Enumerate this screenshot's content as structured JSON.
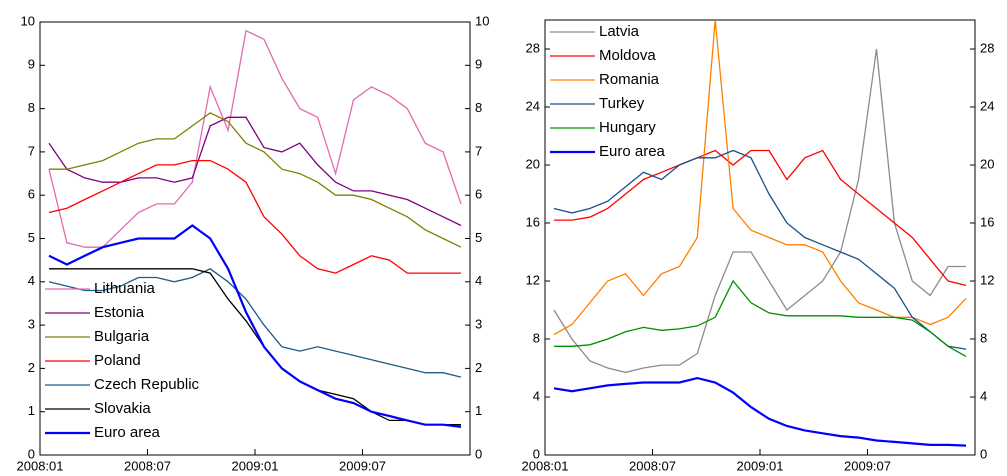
{
  "chart_data": [
    {
      "type": "line",
      "x": [
        "2008:01",
        "2008:02",
        "2008:03",
        "2008:04",
        "2008:05",
        "2008:06",
        "2008:07",
        "2008:08",
        "2008:09",
        "2008:10",
        "2008:11",
        "2008:12",
        "2009:01",
        "2009:02",
        "2009:03",
        "2009:04",
        "2009:05",
        "2009:06",
        "2009:07",
        "2009:08",
        "2009:09",
        "2009:10",
        "2009:11",
        "2009:12"
      ],
      "xticks": [
        "2008:01",
        "2008:07",
        "2009:01",
        "2009:07"
      ],
      "ylim": [
        0,
        10
      ],
      "yticks": [
        0,
        1,
        2,
        3,
        4,
        5,
        6,
        7,
        8,
        9,
        10
      ],
      "legend": "lower left",
      "series": [
        {
          "name": "Lithuania",
          "color": "#e36aae",
          "values": [
            6.6,
            4.9,
            4.8,
            4.8,
            5.2,
            5.6,
            5.8,
            5.8,
            6.3,
            8.5,
            7.5,
            9.8,
            9.6,
            8.7,
            8.0,
            7.8,
            6.5,
            8.2,
            8.5,
            8.3,
            8.0,
            7.2,
            7.0,
            5.8
          ]
        },
        {
          "name": "Estonia",
          "color": "#800080",
          "values": [
            7.2,
            6.6,
            6.4,
            6.3,
            6.3,
            6.4,
            6.4,
            6.3,
            6.4,
            7.6,
            7.8,
            7.8,
            7.1,
            7.0,
            7.2,
            6.7,
            6.3,
            6.1,
            6.1,
            6.0,
            5.9,
            5.7,
            5.5,
            5.3
          ]
        },
        {
          "name": "Bulgaria",
          "color": "#808000",
          "values": [
            6.6,
            6.6,
            6.7,
            6.8,
            7.0,
            7.2,
            7.3,
            7.3,
            7.6,
            7.9,
            7.7,
            7.2,
            7.0,
            6.6,
            6.5,
            6.3,
            6.0,
            6.0,
            5.9,
            5.7,
            5.5,
            5.2,
            5.0,
            4.8
          ]
        },
        {
          "name": "Poland",
          "color": "#ff0000",
          "values": [
            5.6,
            5.7,
            5.9,
            6.1,
            6.3,
            6.5,
            6.7,
            6.7,
            6.8,
            6.8,
            6.6,
            6.3,
            5.5,
            5.1,
            4.6,
            4.3,
            4.2,
            4.4,
            4.6,
            4.5,
            4.2,
            4.2,
            4.2,
            4.2
          ]
        },
        {
          "name": "Czech Republic",
          "color": "#1a5d8a",
          "values": [
            4.0,
            3.9,
            3.8,
            3.8,
            3.9,
            4.1,
            4.1,
            4.0,
            4.1,
            4.3,
            4.0,
            3.6,
            3.0,
            2.5,
            2.4,
            2.5,
            2.4,
            2.3,
            2.2,
            2.1,
            2.0,
            1.9,
            1.9,
            1.8
          ]
        },
        {
          "name": "Slovakia",
          "color": "#000000",
          "values": [
            4.3,
            4.3,
            4.3,
            4.3,
            4.3,
            4.3,
            4.3,
            4.3,
            4.3,
            4.2,
            3.6,
            3.1,
            2.5,
            2.0,
            1.7,
            1.5,
            1.4,
            1.3,
            1.0,
            0.8,
            0.8,
            0.7,
            0.7,
            0.7
          ]
        },
        {
          "name": "Euro area",
          "color": "#0000ff",
          "values": [
            4.6,
            4.4,
            4.6,
            4.8,
            4.9,
            5.0,
            5.0,
            5.0,
            5.3,
            5.0,
            4.3,
            3.3,
            2.5,
            2.0,
            1.7,
            1.5,
            1.3,
            1.2,
            1.0,
            0.9,
            0.8,
            0.7,
            0.7,
            0.65
          ]
        }
      ]
    },
    {
      "type": "line",
      "x": [
        "2008:01",
        "2008:02",
        "2008:03",
        "2008:04",
        "2008:05",
        "2008:06",
        "2008:07",
        "2008:08",
        "2008:09",
        "2008:10",
        "2008:11",
        "2008:12",
        "2009:01",
        "2009:02",
        "2009:03",
        "2009:04",
        "2009:05",
        "2009:06",
        "2009:07",
        "2009:08",
        "2009:09",
        "2009:10",
        "2009:11",
        "2009:12"
      ],
      "xticks": [
        "2008:01",
        "2008:07",
        "2009:01",
        "2009:07"
      ],
      "ylim": [
        0,
        30
      ],
      "yticks": [
        0,
        4,
        8,
        12,
        16,
        20,
        24,
        28
      ],
      "legend": "upper left",
      "series": [
        {
          "name": "Latvia",
          "color": "#8c8c8c",
          "values": [
            10,
            8,
            6.5,
            6,
            5.7,
            6,
            6.2,
            6.2,
            7,
            11,
            14,
            14,
            12,
            10,
            11,
            12,
            14,
            19,
            28,
            16,
            12,
            11,
            13,
            13
          ]
        },
        {
          "name": "Moldova",
          "color": "#ff0000",
          "values": [
            16.2,
            16.2,
            16.4,
            17,
            18,
            19,
            19.5,
            20,
            20.5,
            21,
            20,
            21,
            21,
            19,
            20.5,
            21,
            19,
            18,
            17,
            16,
            15,
            13.5,
            12,
            11.7
          ]
        },
        {
          "name": "Romania",
          "color": "#ff8000",
          "values": [
            8.3,
            9,
            10.5,
            12,
            12.5,
            11,
            12.5,
            13,
            15,
            30,
            17,
            15.5,
            15,
            14.5,
            14.5,
            14,
            12,
            10.5,
            10,
            9.5,
            9.5,
            9,
            9.5,
            10.8
          ]
        },
        {
          "name": "Turkey",
          "color": "#1a4f8a",
          "values": [
            17,
            16.7,
            17,
            17.5,
            18.5,
            19.5,
            19,
            20,
            20.5,
            20.5,
            21,
            20.5,
            18,
            16,
            15,
            14.5,
            14,
            13.5,
            12.5,
            11.5,
            9.5,
            8.5,
            7.5,
            7.3
          ]
        },
        {
          "name": "Hungary",
          "color": "#009000",
          "values": [
            7.5,
            7.5,
            7.6,
            8.0,
            8.5,
            8.8,
            8.6,
            8.7,
            8.9,
            9.5,
            12,
            10.5,
            9.8,
            9.6,
            9.6,
            9.6,
            9.6,
            9.5,
            9.5,
            9.5,
            9.3,
            8.5,
            7.5,
            6.8
          ]
        },
        {
          "name": "Euro area",
          "color": "#0000ff",
          "values": [
            4.6,
            4.4,
            4.6,
            4.8,
            4.9,
            5.0,
            5.0,
            5.0,
            5.3,
            5.0,
            4.3,
            3.3,
            2.5,
            2.0,
            1.7,
            1.5,
            1.3,
            1.2,
            1.0,
            0.9,
            0.8,
            0.7,
            0.7,
            0.65
          ]
        }
      ]
    }
  ]
}
